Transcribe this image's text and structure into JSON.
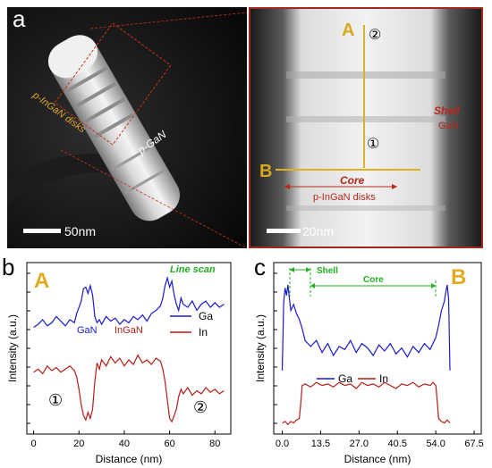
{
  "panel_a": {
    "letter": "a",
    "label_disks": "p-InGaN disks",
    "label_pgan": "p-GaN",
    "scale_bar": "50nm",
    "zoom": {
      "label_A": "A",
      "label_B": "B",
      "circle_2": "②",
      "circle_1": "①",
      "shell_title": "Shell",
      "shell_material": "GaN",
      "core_title": "Core",
      "core_material": "p-InGaN disks",
      "scale_bar": "20nm"
    }
  },
  "panel_b": {
    "letter": "b",
    "profile_letter": "A",
    "annotation_scan": "Line scan",
    "label_gan": "GaN",
    "label_ingan": "InGaN",
    "circle_1": "①",
    "circle_2": "②",
    "xlabel": "Distance (nm)",
    "ylabel": "Intensity (a.u.)",
    "x_ticks": [
      "0",
      "20",
      "40",
      "60",
      "80"
    ],
    "legend": [
      "Ga",
      "In"
    ]
  },
  "panel_c": {
    "letter": "c",
    "profile_letter": "B",
    "label_shell": "Shell",
    "label_core": "Core",
    "xlabel": "Distance (nm)",
    "ylabel": "Intensity (a.u.)",
    "x_ticks": [
      "0.0",
      "13.5",
      "27.0",
      "40.5",
      "54.0",
      "67.5"
    ],
    "legend": [
      "Ga",
      "In"
    ]
  },
  "chart_data": [
    {
      "type": "line",
      "xlabel": "Distance (nm)",
      "ylabel": "Intensity (a.u.)",
      "xlim": [
        -3,
        87
      ],
      "series": [
        {
          "name": "Ga",
          "color": "#1a1acd",
          "x": [
            0,
            2,
            4,
            6,
            8,
            10,
            12,
            14,
            16,
            18,
            19,
            20,
            21,
            22,
            23,
            24,
            25,
            26,
            27,
            28,
            29,
            30,
            32,
            34,
            36,
            38,
            40,
            42,
            44,
            46,
            48,
            50,
            52,
            54,
            56,
            57,
            58,
            59,
            60,
            61,
            62,
            63,
            64,
            65,
            66,
            68,
            70,
            72,
            74,
            76,
            78,
            80,
            82,
            84
          ],
          "y": [
            0.65,
            0.67,
            0.7,
            0.66,
            0.68,
            0.72,
            0.69,
            0.66,
            0.7,
            0.68,
            0.74,
            0.78,
            0.82,
            0.9,
            0.91,
            0.87,
            0.92,
            0.86,
            0.72,
            0.68,
            0.7,
            0.67,
            0.72,
            0.69,
            0.71,
            0.67,
            0.7,
            0.68,
            0.72,
            0.7,
            0.73,
            0.69,
            0.74,
            0.76,
            0.79,
            0.84,
            0.92,
            0.97,
            0.91,
            0.95,
            0.86,
            0.8,
            0.76,
            0.84,
            0.8,
            0.78,
            0.82,
            0.76,
            0.8,
            0.82,
            0.78,
            0.81,
            0.78,
            0.8
          ]
        },
        {
          "name": "In",
          "color": "#b51c16",
          "x": [
            0,
            2,
            4,
            6,
            8,
            10,
            12,
            14,
            16,
            18,
            19,
            20,
            21,
            22,
            23,
            24,
            25,
            26,
            27,
            28,
            29,
            30,
            32,
            34,
            36,
            38,
            40,
            42,
            44,
            46,
            48,
            50,
            52,
            54,
            56,
            57,
            58,
            59,
            60,
            61,
            62,
            63,
            64,
            65,
            66,
            68,
            70,
            72,
            74,
            76,
            78,
            80,
            82,
            84
          ],
          "y": [
            0.36,
            0.38,
            0.35,
            0.4,
            0.37,
            0.39,
            0.36,
            0.38,
            0.4,
            0.37,
            0.33,
            0.25,
            0.15,
            0.08,
            0.05,
            0.1,
            0.06,
            0.12,
            0.3,
            0.42,
            0.38,
            0.44,
            0.4,
            0.46,
            0.42,
            0.45,
            0.4,
            0.44,
            0.41,
            0.47,
            0.42,
            0.44,
            0.41,
            0.45,
            0.43,
            0.38,
            0.3,
            0.18,
            0.06,
            0.04,
            0.08,
            0.12,
            0.2,
            0.25,
            0.22,
            0.26,
            0.21,
            0.24,
            0.22,
            0.26,
            0.23,
            0.25,
            0.22,
            0.24
          ]
        }
      ]
    },
    {
      "type": "line",
      "xlabel": "Distance (nm)",
      "ylabel": "Intensity (a.u.)",
      "xlim": [
        -3,
        70
      ],
      "series": [
        {
          "name": "Ga",
          "color": "#1a1acd",
          "x": [
            0,
            0.5,
            1,
            1.5,
            2,
            2.5,
            3,
            4,
            5,
            6,
            7,
            8,
            10,
            12,
            14,
            16,
            18,
            20,
            22,
            24,
            26,
            28,
            30,
            32,
            34,
            36,
            38,
            40,
            42,
            44,
            46,
            48,
            50,
            52,
            54,
            55,
            56,
            57,
            57.5,
            58,
            58.5,
            59
          ],
          "y": [
            0.4,
            0.85,
            0.95,
            0.9,
            0.97,
            0.88,
            0.8,
            0.84,
            0.78,
            0.74,
            0.68,
            0.6,
            0.56,
            0.6,
            0.52,
            0.58,
            0.5,
            0.56,
            0.54,
            0.6,
            0.52,
            0.58,
            0.55,
            0.5,
            0.57,
            0.53,
            0.58,
            0.51,
            0.55,
            0.49,
            0.56,
            0.52,
            0.58,
            0.54,
            0.62,
            0.7,
            0.8,
            0.86,
            0.92,
            0.97,
            0.88,
            0.4
          ]
        },
        {
          "name": "In",
          "color": "#b51c16",
          "x": [
            0,
            1,
            2,
            3,
            4,
            5,
            6,
            6.5,
            7,
            8,
            10,
            12,
            14,
            16,
            18,
            20,
            22,
            24,
            26,
            28,
            30,
            32,
            34,
            36,
            38,
            40,
            42,
            44,
            46,
            48,
            50,
            52,
            53,
            54,
            54.5,
            55,
            56,
            57,
            58,
            59
          ],
          "y": [
            0.05,
            0.06,
            0.04,
            0.06,
            0.05,
            0.07,
            0.08,
            0.18,
            0.3,
            0.31,
            0.29,
            0.32,
            0.3,
            0.31,
            0.29,
            0.32,
            0.3,
            0.31,
            0.28,
            0.32,
            0.3,
            0.31,
            0.29,
            0.32,
            0.3,
            0.28,
            0.31,
            0.3,
            0.32,
            0.29,
            0.31,
            0.3,
            0.32,
            0.3,
            0.2,
            0.08,
            0.06,
            0.05,
            0.07,
            0.05
          ]
        }
      ]
    }
  ]
}
